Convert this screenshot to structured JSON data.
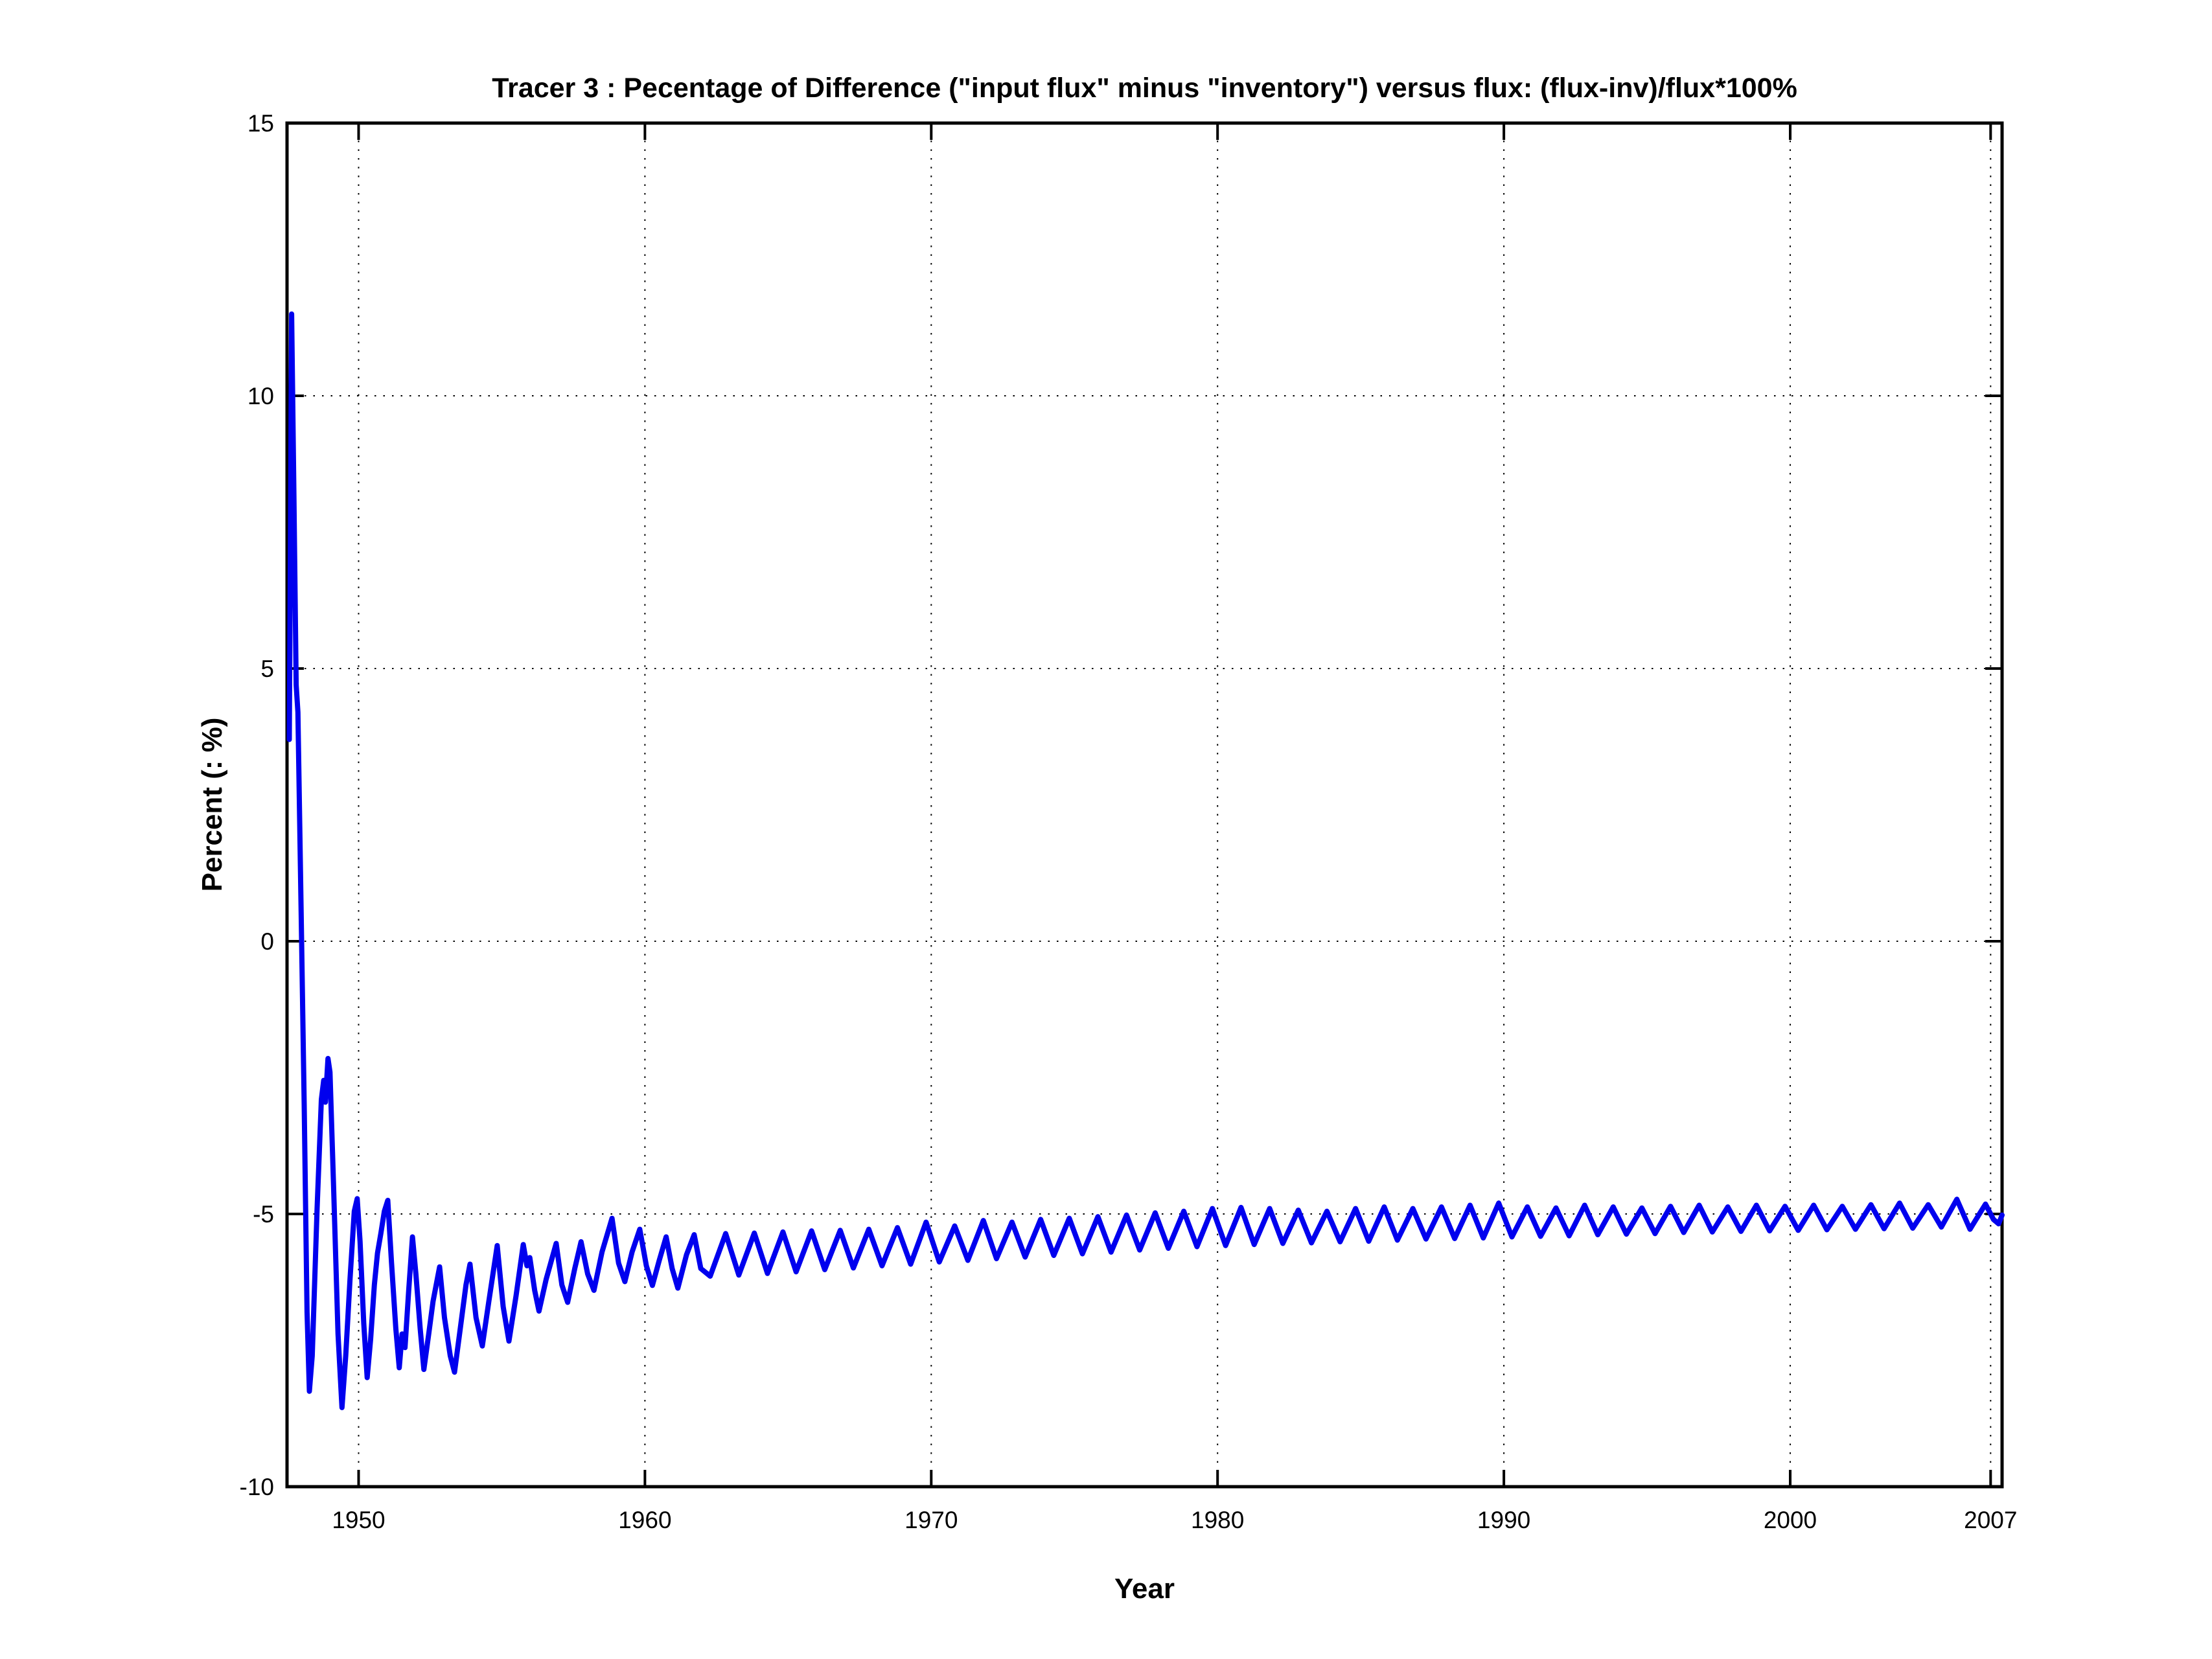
{
  "chart_data": {
    "type": "line",
    "title": "Tracer 3 : Pecentage of Difference (\"input flux\" minus \"inventory\") versus flux: (flux-inv)/flux*100%",
    "xlabel": "Year",
    "ylabel": "Percent (: %)",
    "xlim": [
      1947.5,
      2007.4
    ],
    "ylim": [
      -10,
      15
    ],
    "xticks": [
      1950,
      1960,
      1970,
      1980,
      1990,
      2000,
      2007
    ],
    "yticks": [
      -10,
      -5,
      0,
      5,
      10,
      15
    ],
    "grid": true,
    "legend": null,
    "line_color": "#0000EE",
    "line_width": 8,
    "series": [
      {
        "name": "(flux-inv)/flux*100%",
        "points": [
          [
            1947.58,
            3.7
          ],
          [
            1947.62,
            7.5
          ],
          [
            1947.66,
            11.5
          ],
          [
            1947.74,
            8.2
          ],
          [
            1947.82,
            4.7
          ],
          [
            1947.88,
            4.2
          ],
          [
            1948.0,
            0.3
          ],
          [
            1948.1,
            -3.0
          ],
          [
            1948.2,
            -6.8
          ],
          [
            1948.28,
            -8.25
          ],
          [
            1948.38,
            -7.6
          ],
          [
            1948.55,
            -4.9
          ],
          [
            1948.7,
            -2.9
          ],
          [
            1948.78,
            -2.55
          ],
          [
            1948.84,
            -2.95
          ],
          [
            1948.93,
            -2.15
          ],
          [
            1949.0,
            -2.4
          ],
          [
            1949.12,
            -4.4
          ],
          [
            1949.28,
            -7.2
          ],
          [
            1949.42,
            -8.55
          ],
          [
            1949.55,
            -7.6
          ],
          [
            1949.7,
            -6.2
          ],
          [
            1949.85,
            -4.95
          ],
          [
            1949.95,
            -4.72
          ],
          [
            1950.05,
            -5.5
          ],
          [
            1950.18,
            -7.0
          ],
          [
            1950.3,
            -8.0
          ],
          [
            1950.42,
            -7.3
          ],
          [
            1950.55,
            -6.3
          ],
          [
            1950.66,
            -5.72
          ],
          [
            1950.78,
            -5.35
          ],
          [
            1950.9,
            -4.95
          ],
          [
            1951.02,
            -4.75
          ],
          [
            1951.15,
            -5.9
          ],
          [
            1951.3,
            -7.1
          ],
          [
            1951.42,
            -7.82
          ],
          [
            1951.52,
            -7.2
          ],
          [
            1951.62,
            -7.45
          ],
          [
            1951.75,
            -6.4
          ],
          [
            1951.88,
            -5.42
          ],
          [
            1952.0,
            -6.1
          ],
          [
            1952.15,
            -7.1
          ],
          [
            1952.28,
            -7.85
          ],
          [
            1952.45,
            -7.2
          ],
          [
            1952.6,
            -6.6
          ],
          [
            1952.83,
            -5.97
          ],
          [
            1953.0,
            -6.9
          ],
          [
            1953.2,
            -7.6
          ],
          [
            1953.35,
            -7.9
          ],
          [
            1953.55,
            -7.1
          ],
          [
            1953.75,
            -6.3
          ],
          [
            1953.89,
            -5.92
          ],
          [
            1954.1,
            -6.9
          ],
          [
            1954.32,
            -7.42
          ],
          [
            1954.55,
            -6.6
          ],
          [
            1954.84,
            -5.58
          ],
          [
            1955.05,
            -6.7
          ],
          [
            1955.25,
            -7.33
          ],
          [
            1955.5,
            -6.5
          ],
          [
            1955.75,
            -5.56
          ],
          [
            1955.88,
            -5.95
          ],
          [
            1955.98,
            -5.8
          ],
          [
            1956.15,
            -6.4
          ],
          [
            1956.3,
            -6.78
          ],
          [
            1956.55,
            -6.2
          ],
          [
            1956.9,
            -5.54
          ],
          [
            1957.1,
            -6.3
          ],
          [
            1957.3,
            -6.62
          ],
          [
            1957.55,
            -6.0
          ],
          [
            1957.77,
            -5.51
          ],
          [
            1958.0,
            -6.1
          ],
          [
            1958.22,
            -6.4
          ],
          [
            1958.5,
            -5.7
          ],
          [
            1958.85,
            -5.08
          ],
          [
            1959.08,
            -5.9
          ],
          [
            1959.3,
            -6.24
          ],
          [
            1959.55,
            -5.7
          ],
          [
            1959.82,
            -5.28
          ],
          [
            1960.05,
            -5.95
          ],
          [
            1960.26,
            -6.31
          ],
          [
            1960.5,
            -5.85
          ],
          [
            1960.74,
            -5.42
          ],
          [
            1960.95,
            -6.0
          ],
          [
            1961.15,
            -6.36
          ],
          [
            1961.45,
            -5.75
          ],
          [
            1961.72,
            -5.38
          ],
          [
            1961.95,
            -6.0
          ],
          [
            1962.28,
            -6.14
          ],
          [
            1962.82,
            -5.36
          ],
          [
            1963.28,
            -6.12
          ],
          [
            1963.82,
            -5.35
          ],
          [
            1964.28,
            -6.09
          ],
          [
            1964.82,
            -5.33
          ],
          [
            1965.28,
            -6.06
          ],
          [
            1965.82,
            -5.31
          ],
          [
            1966.28,
            -6.02
          ],
          [
            1966.82,
            -5.3
          ],
          [
            1967.28,
            -5.99
          ],
          [
            1967.82,
            -5.28
          ],
          [
            1968.28,
            -5.95
          ],
          [
            1968.82,
            -5.25
          ],
          [
            1969.28,
            -5.92
          ],
          [
            1969.82,
            -5.15
          ],
          [
            1970.28,
            -5.88
          ],
          [
            1970.82,
            -5.22
          ],
          [
            1971.28,
            -5.85
          ],
          [
            1971.82,
            -5.12
          ],
          [
            1972.28,
            -5.82
          ],
          [
            1972.82,
            -5.15
          ],
          [
            1973.28,
            -5.79
          ],
          [
            1973.82,
            -5.1
          ],
          [
            1974.28,
            -5.76
          ],
          [
            1974.82,
            -5.08
          ],
          [
            1975.28,
            -5.73
          ],
          [
            1975.82,
            -5.05
          ],
          [
            1976.28,
            -5.7
          ],
          [
            1976.82,
            -5.02
          ],
          [
            1977.28,
            -5.66
          ],
          [
            1977.82,
            -4.98
          ],
          [
            1978.28,
            -5.63
          ],
          [
            1978.82,
            -4.95
          ],
          [
            1979.28,
            -5.6
          ],
          [
            1979.82,
            -4.9
          ],
          [
            1980.28,
            -5.58
          ],
          [
            1980.82,
            -4.88
          ],
          [
            1981.28,
            -5.56
          ],
          [
            1981.82,
            -4.9
          ],
          [
            1982.28,
            -5.54
          ],
          [
            1982.82,
            -4.93
          ],
          [
            1983.28,
            -5.53
          ],
          [
            1983.82,
            -4.95
          ],
          [
            1984.28,
            -5.51
          ],
          [
            1984.82,
            -4.9
          ],
          [
            1985.28,
            -5.5
          ],
          [
            1985.82,
            -4.87
          ],
          [
            1986.28,
            -5.48
          ],
          [
            1986.82,
            -4.9
          ],
          [
            1987.28,
            -5.46
          ],
          [
            1987.82,
            -4.87
          ],
          [
            1988.28,
            -5.45
          ],
          [
            1988.82,
            -4.84
          ],
          [
            1989.28,
            -5.44
          ],
          [
            1989.82,
            -4.8
          ],
          [
            1990.28,
            -5.42
          ],
          [
            1990.82,
            -4.87
          ],
          [
            1991.28,
            -5.41
          ],
          [
            1991.82,
            -4.89
          ],
          [
            1992.28,
            -5.4
          ],
          [
            1992.82,
            -4.84
          ],
          [
            1993.28,
            -5.38
          ],
          [
            1993.82,
            -4.87
          ],
          [
            1994.28,
            -5.37
          ],
          [
            1994.82,
            -4.89
          ],
          [
            1995.28,
            -5.36
          ],
          [
            1995.82,
            -4.86
          ],
          [
            1996.28,
            -5.34
          ],
          [
            1996.82,
            -4.84
          ],
          [
            1997.28,
            -5.33
          ],
          [
            1997.82,
            -4.87
          ],
          [
            1998.28,
            -5.32
          ],
          [
            1998.82,
            -4.84
          ],
          [
            1999.28,
            -5.31
          ],
          [
            1999.82,
            -4.86
          ],
          [
            2000.28,
            -5.3
          ],
          [
            2000.82,
            -4.84
          ],
          [
            2001.28,
            -5.29
          ],
          [
            2001.82,
            -4.86
          ],
          [
            2002.28,
            -5.28
          ],
          [
            2002.82,
            -4.83
          ],
          [
            2003.28,
            -5.27
          ],
          [
            2003.82,
            -4.8
          ],
          [
            2004.28,
            -5.26
          ],
          [
            2004.82,
            -4.83
          ],
          [
            2005.28,
            -5.24
          ],
          [
            2005.82,
            -4.73
          ],
          [
            2006.28,
            -5.28
          ],
          [
            2006.82,
            -4.82
          ],
          [
            2007.1,
            -5.1
          ],
          [
            2007.28,
            -5.18
          ],
          [
            2007.4,
            -5.02
          ]
        ]
      }
    ]
  }
}
